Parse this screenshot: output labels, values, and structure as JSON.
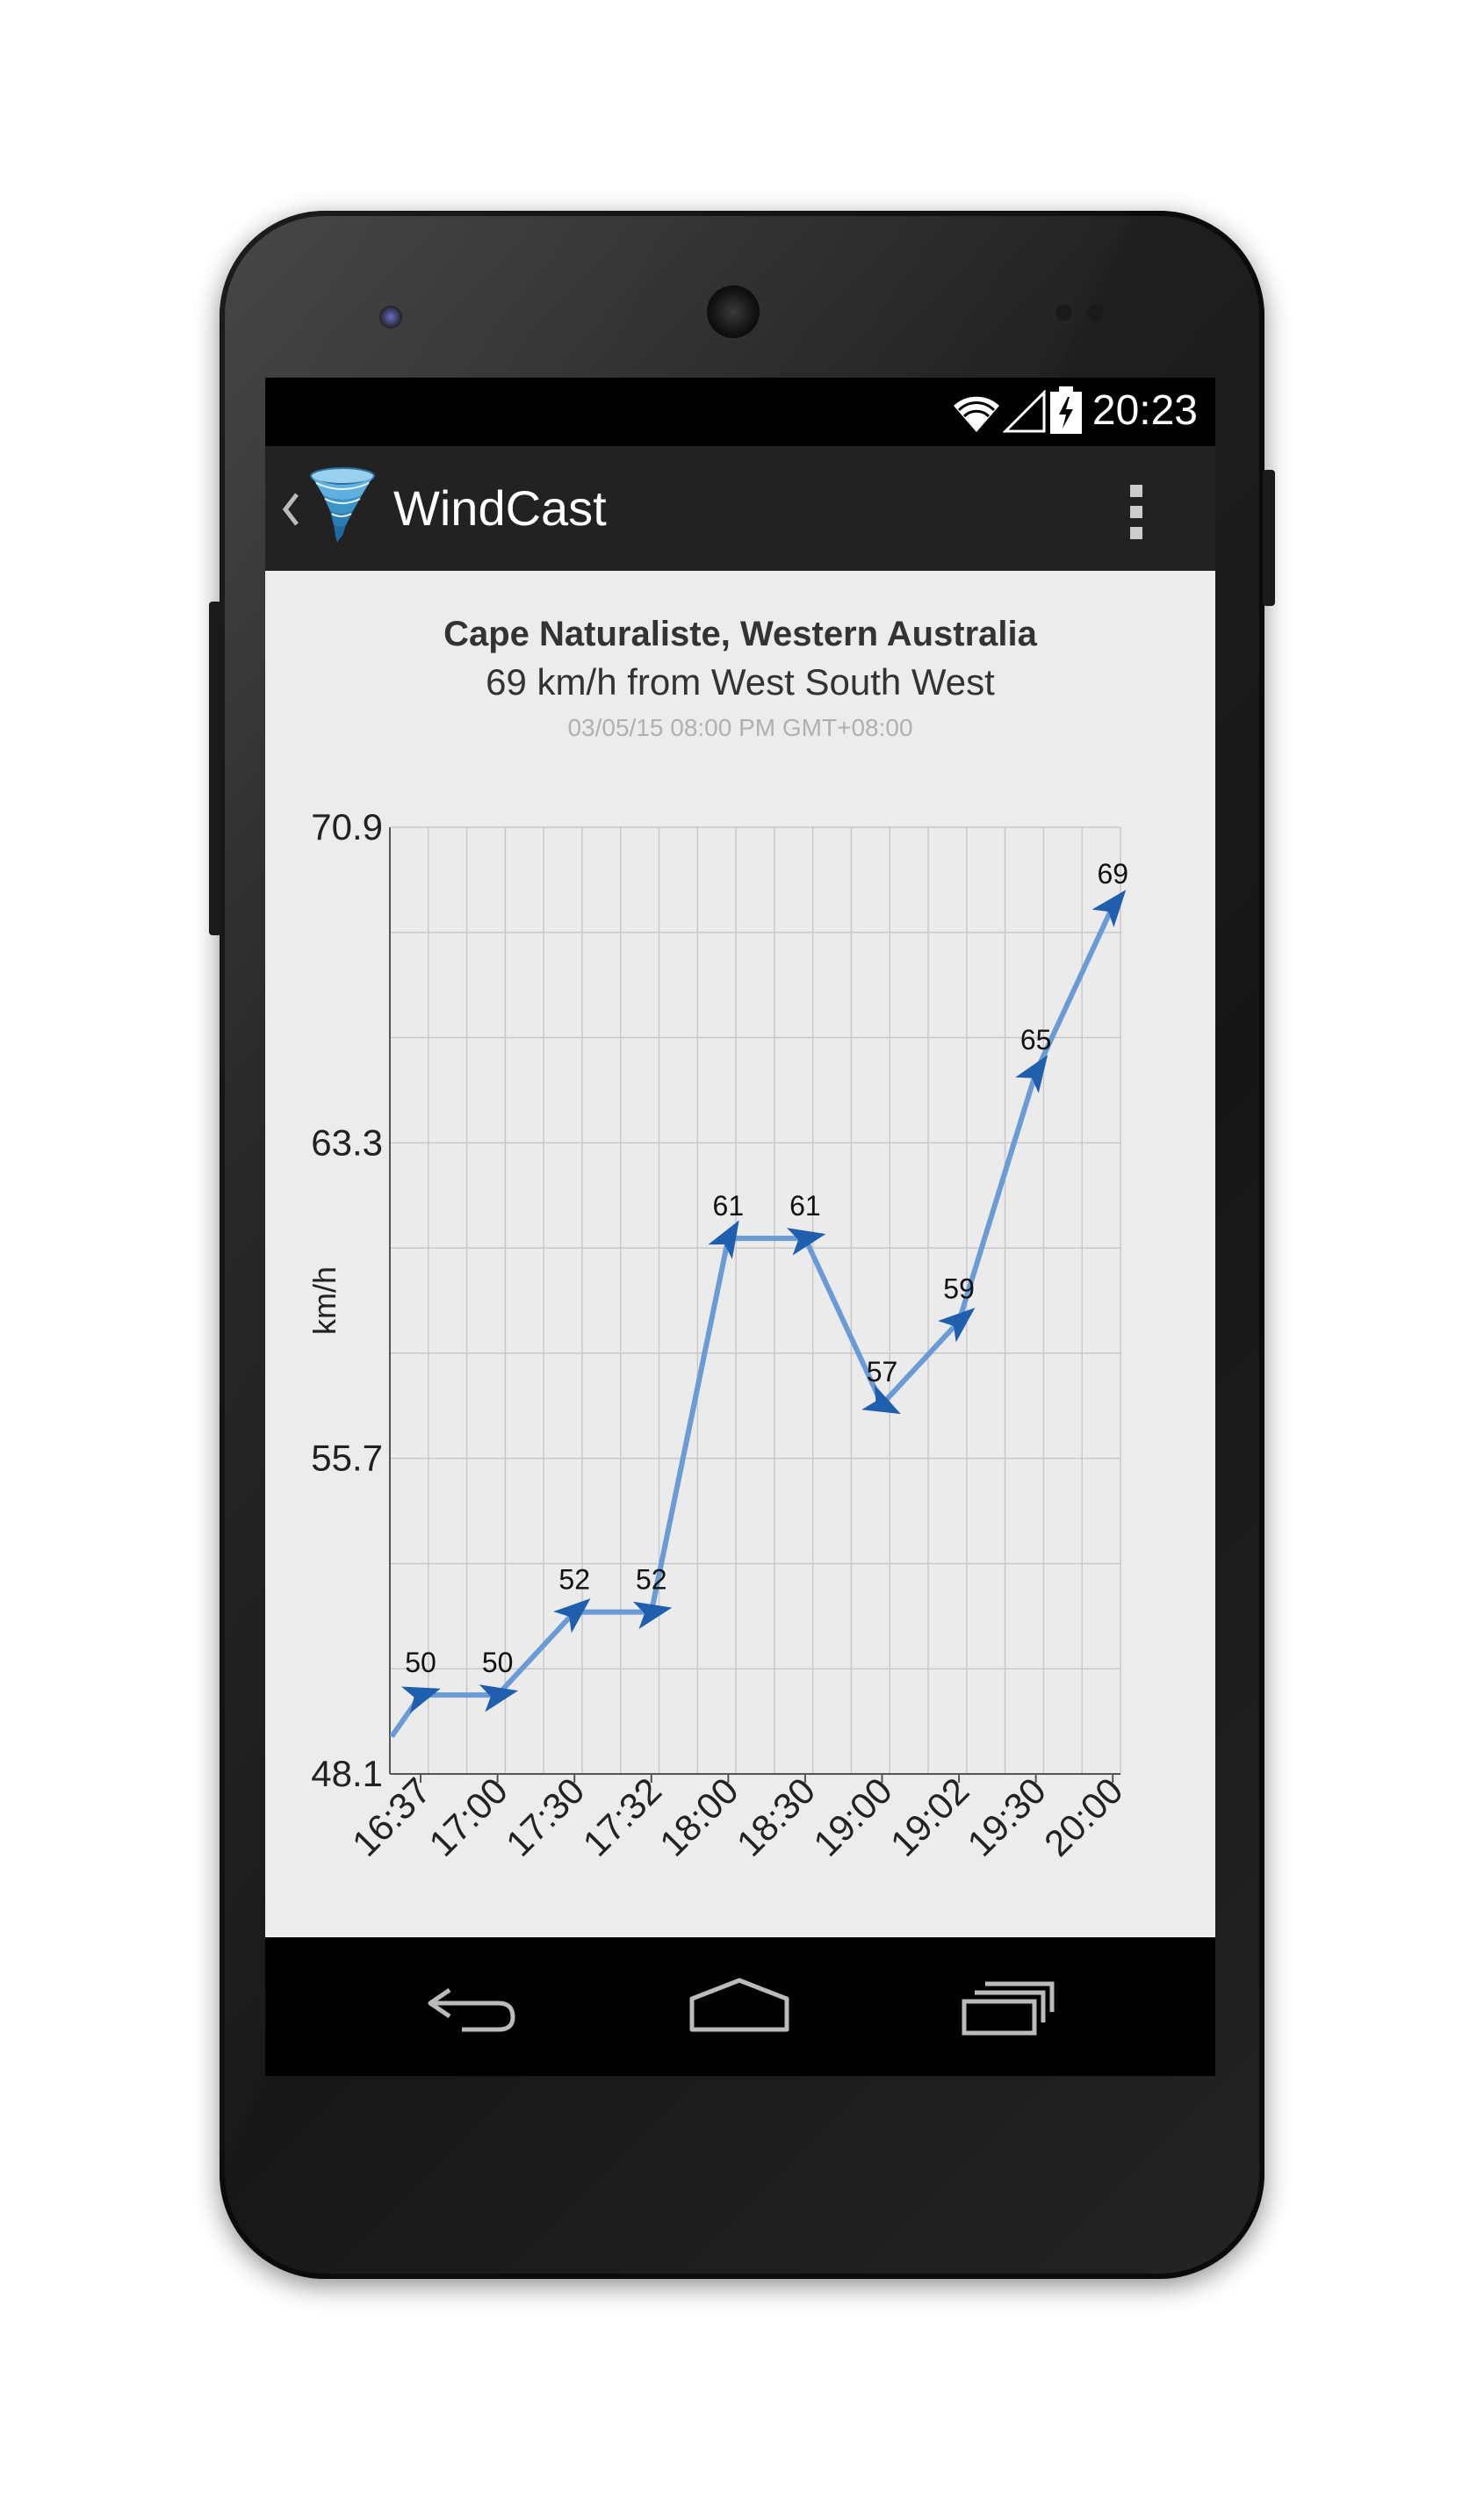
{
  "status_bar": {
    "time": "20:23"
  },
  "action_bar": {
    "title": "WindCast"
  },
  "header": {
    "location": "Cape Naturaliste, Western Australia",
    "summary": "69 km/h from West South West",
    "timestamp": "03/05/15 08:00 PM GMT+08:00"
  },
  "colors": {
    "line": "#6a9bd4",
    "marker": "#1f5fae",
    "grid": "#c8c8c8",
    "plot_bg": "#ebebeb"
  },
  "chart_data": {
    "type": "line",
    "title": "",
    "xlabel": "",
    "ylabel": "km/h",
    "categories": [
      "16:37",
      "17:00",
      "17:30",
      "17:32",
      "18:00",
      "18:30",
      "19:00",
      "19:02",
      "19:30",
      "20:00"
    ],
    "series": [
      {
        "values": [
          50,
          50,
          52,
          52,
          61,
          61,
          57,
          59,
          65,
          69
        ]
      }
    ],
    "data_labels": [
      "50",
      "50",
      "52",
      "52",
      "61",
      "61",
      "57",
      "59",
      "65",
      "69"
    ],
    "yticks": [
      "48.1",
      "55.7",
      "63.3",
      "70.9"
    ],
    "ylim": [
      48.1,
      70.9
    ],
    "line_start_value": 49.0,
    "grid": true,
    "markers": "wind-direction-arrows"
  }
}
